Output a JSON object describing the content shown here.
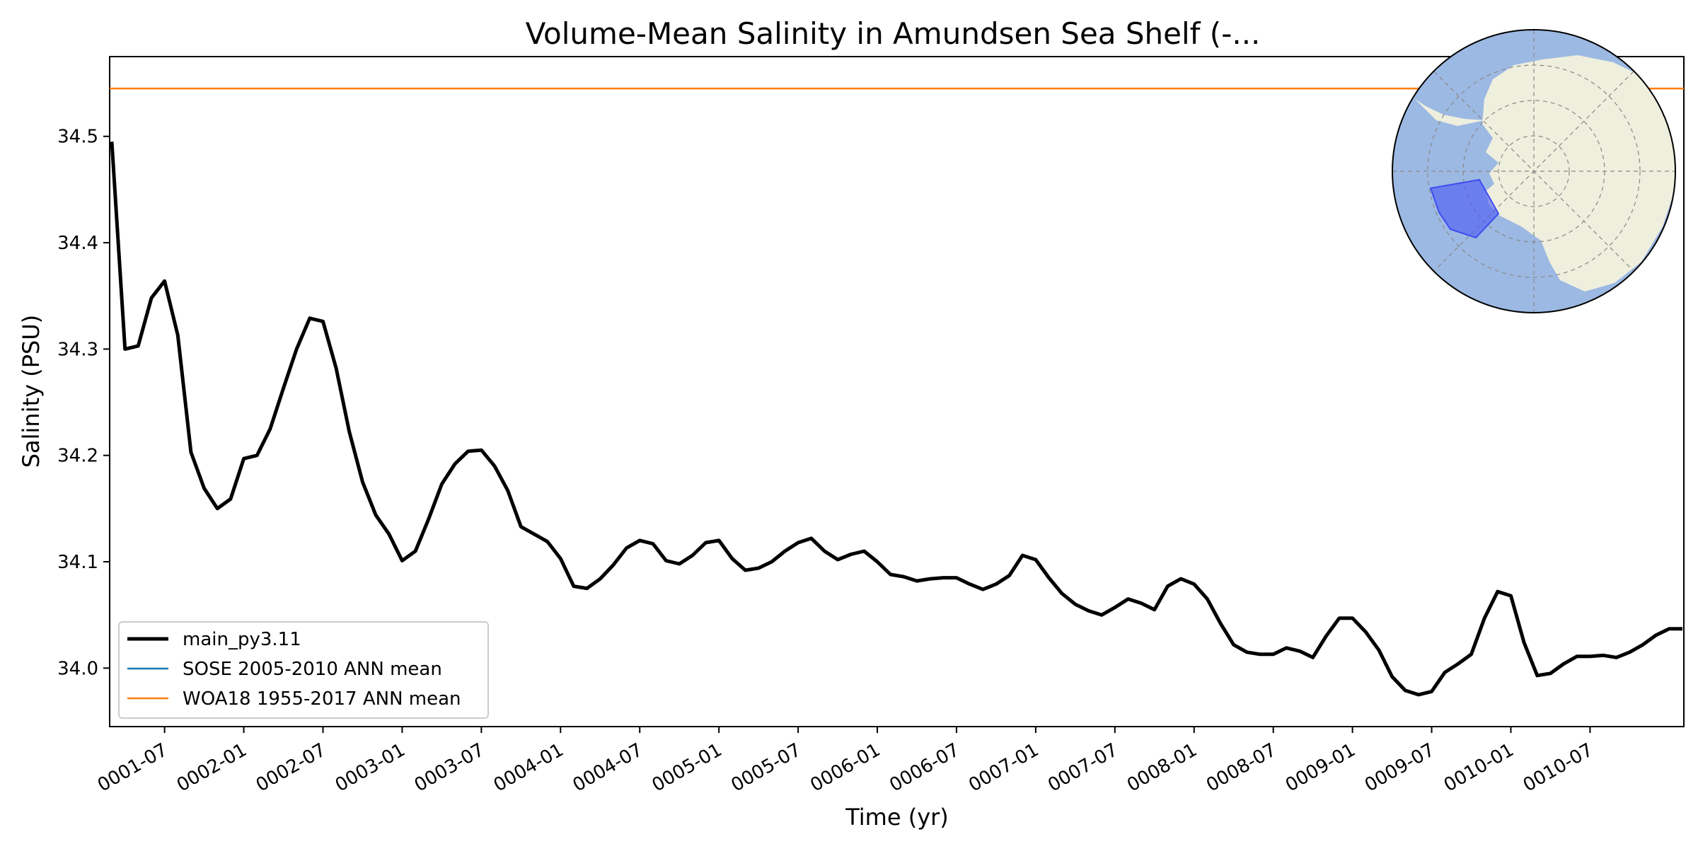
{
  "chart_data": {
    "type": "line",
    "title": "Volume-Mean Salinity in Amundsen Sea Shelf (-...",
    "xlabel": "Time (yr)",
    "ylabel": "Salinity (PSU)",
    "ylim": [
      33.945,
      34.575
    ],
    "y_ticks": [
      "34.0",
      "34.1",
      "34.2",
      "34.3",
      "34.4",
      "34.5"
    ],
    "x_ticks": [
      "0001-07",
      "0002-01",
      "0002-07",
      "0003-01",
      "0003-07",
      "0004-01",
      "0004-07",
      "0005-01",
      "0005-07",
      "0006-01",
      "0006-07",
      "0007-01",
      "0007-07",
      "0008-01",
      "0008-07",
      "0009-01",
      "0009-07",
      "0010-01",
      "0010-07"
    ],
    "grid": false,
    "legend_position": "lower-left",
    "series": [
      {
        "name": "main_py3.11",
        "color": "#000000",
        "values": [
          34.495,
          34.3,
          34.303,
          34.348,
          34.364,
          34.313,
          34.203,
          34.169,
          34.15,
          34.159,
          34.197,
          34.2,
          34.225,
          34.263,
          34.3,
          34.329,
          34.326,
          34.282,
          34.222,
          34.175,
          34.144,
          34.126,
          34.101,
          34.11,
          34.14,
          34.173,
          34.192,
          34.204,
          34.205,
          34.19,
          34.167,
          34.133,
          34.126,
          34.119,
          34.103,
          34.077,
          34.075,
          34.084,
          34.097,
          34.113,
          34.12,
          34.117,
          34.101,
          34.098,
          34.106,
          34.118,
          34.12,
          34.103,
          34.092,
          34.094,
          34.1,
          34.11,
          34.118,
          34.122,
          34.11,
          34.102,
          34.107,
          34.11,
          34.1,
          34.088,
          34.086,
          34.082,
          34.084,
          34.085,
          34.085,
          34.079,
          34.074,
          34.079,
          34.087,
          34.106,
          34.102,
          34.085,
          34.07,
          34.06,
          34.054,
          34.05,
          34.057,
          34.065,
          34.061,
          34.055,
          34.077,
          34.084,
          34.079,
          34.065,
          34.042,
          34.022,
          34.015,
          34.013,
          34.013,
          34.019,
          34.016,
          34.01,
          34.03,
          34.047,
          34.047,
          34.034,
          34.017,
          33.992,
          33.979,
          33.975,
          33.978,
          33.996,
          34.004,
          34.013,
          34.047,
          34.072,
          34.068,
          34.024,
          33.993,
          33.995,
          34.004,
          34.011,
          34.011,
          34.012,
          34.01,
          34.015,
          34.022,
          34.031,
          34.037,
          34.037
        ]
      },
      {
        "name": "SOSE 2005-2010 ANN mean",
        "color": "#1f77b4",
        "values": []
      },
      {
        "name": "WOA18 1955-2017 ANN mean",
        "color": "#ff7f0e",
        "values": [
          34.545
        ]
      }
    ],
    "inset_map": {
      "type": "south-polar-stereographic",
      "ocean_color": "#9cb9e3",
      "land_color": "#efefde",
      "region_color": "#3f4cf0"
    }
  }
}
